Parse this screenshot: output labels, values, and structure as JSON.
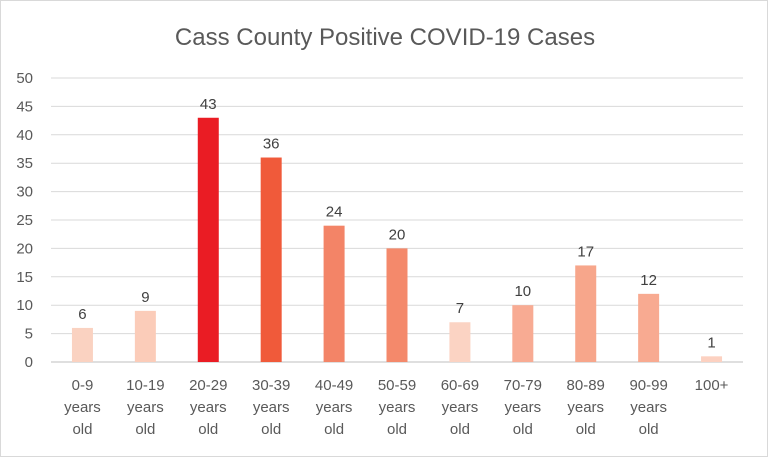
{
  "chart_data": {
    "type": "bar",
    "title": "Cass County Positive COVID-19 Cases",
    "xlabel": "",
    "ylabel": "",
    "ylim": [
      0,
      50
    ],
    "yticks": [
      0,
      5,
      10,
      15,
      20,
      25,
      30,
      35,
      40,
      45,
      50
    ],
    "grid": true,
    "categories": [
      [
        "0-9",
        "years",
        "old"
      ],
      [
        "10-19",
        "years",
        "old"
      ],
      [
        "20-29",
        "years",
        "old"
      ],
      [
        "30-39",
        "years",
        "old"
      ],
      [
        "40-49",
        "years",
        "old"
      ],
      [
        "50-59",
        "years",
        "old"
      ],
      [
        "60-69",
        "years",
        "old"
      ],
      [
        "70-79",
        "years",
        "old"
      ],
      [
        "80-89",
        "years",
        "old"
      ],
      [
        "90-99",
        "years",
        "old"
      ],
      [
        "100+"
      ]
    ],
    "values": [
      6,
      9,
      43,
      36,
      24,
      20,
      7,
      10,
      17,
      12,
      1
    ],
    "colors": [
      "#fad2c1",
      "#fbccb9",
      "#ea1c24",
      "#f05a3a",
      "#f38467",
      "#f4896b",
      "#fbd3c3",
      "#f8ab93",
      "#f7a68b",
      "#f8aa91",
      "#fcd1c1"
    ]
  }
}
